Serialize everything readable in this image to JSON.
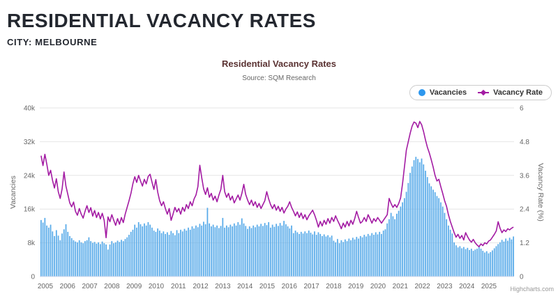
{
  "header": {
    "title": "RESIDENTIAL VACANCY RATES",
    "city": "CITY: MELBOURNE"
  },
  "chart": {
    "title": "Residential Vacancy Rates",
    "subtitle": "Source: SQM Research",
    "credit": "Highcharts.com",
    "legend": {
      "vacancies": "Vacancies",
      "vacancy_rate": "Vacancy Rate"
    },
    "left_axis": {
      "title": "Vacancies",
      "ticks": [
        "0",
        "8k",
        "16k",
        "24k",
        "32k",
        "40k"
      ]
    },
    "right_axis": {
      "title": "Vacancy Rate (%)",
      "ticks": [
        "0",
        "1.2",
        "2.4",
        "3.6",
        "4.8",
        "6"
      ]
    },
    "colors": {
      "bar": "#57aae9",
      "legend_dot": "#2d97ee",
      "line": "#a31ba3",
      "grid": "#e6e6e6",
      "axis_line": "#ccd6eb",
      "axis_text": "#666666"
    }
  },
  "chart_data": {
    "type": "bar+line",
    "title": "Residential Vacancy Rates",
    "subtitle": "Source: SQM Research",
    "x_start": "2005-01",
    "x_interval": "month",
    "x_year_labels": [
      "2005",
      "2006",
      "2007",
      "2008",
      "2009",
      "2010",
      "2011",
      "2012",
      "2013",
      "2014",
      "2015",
      "2016",
      "2017",
      "2018",
      "2019",
      "2020",
      "2021",
      "2022",
      "2023",
      "2024",
      "2025"
    ],
    "ylim_left": [
      0,
      40000
    ],
    "ylim_right": [
      0,
      6
    ],
    "ylabel_left": "Vacancies",
    "ylabel_right": "Vacancy Rate (%)",
    "legend_position": "top-right",
    "grid": true,
    "series": [
      {
        "name": "Vacancies",
        "type": "bar",
        "axis": "left",
        "unit": "thousands",
        "color": "#57aae9",
        "values": [
          13.4,
          12.8,
          13.9,
          12.1,
          11.6,
          12.3,
          10.7,
          9.6,
          11.0,
          9.7,
          8.6,
          10.2,
          11.2,
          12.4,
          10.6,
          9.6,
          9.1,
          8.6,
          8.3,
          8.1,
          8.6,
          8.1,
          7.9,
          8.4,
          8.6,
          9.3,
          8.4,
          8.0,
          8.2,
          7.8,
          8.1,
          7.7,
          8.3,
          7.9,
          7.6,
          6.4,
          7.6,
          8.4,
          7.9,
          8.1,
          8.5,
          8.2,
          8.7,
          8.4,
          8.9,
          9.3,
          9.9,
          10.6,
          11.1,
          12.3,
          11.6,
          12.9,
          12.4,
          11.9,
          12.6,
          12.1,
          12.9,
          12.3,
          11.6,
          10.9,
          10.6,
          11.4,
          10.9,
          10.3,
          10.7,
          10.1,
          10.5,
          9.9,
          10.8,
          10.3,
          9.8,
          11.0,
          10.3,
          11.1,
          10.7,
          11.3,
          10.9,
          11.6,
          11.1,
          11.9,
          11.4,
          12.1,
          11.7,
          12.5,
          12.1,
          13.0,
          12.4,
          16.3,
          12.6,
          11.9,
          12.3,
          11.7,
          12.1,
          11.5,
          12.0,
          13.9,
          11.6,
          12.1,
          11.7,
          12.3,
          11.9,
          12.6,
          12.1,
          12.9,
          12.3,
          13.8,
          12.6,
          12.0,
          11.3,
          11.9,
          11.5,
          12.1,
          11.7,
          12.3,
          11.9,
          12.5,
          12.0,
          12.7,
          12.2,
          12.9,
          11.6,
          12.3,
          11.8,
          12.5,
          12.0,
          12.7,
          12.1,
          13.2,
          12.4,
          11.9,
          11.4,
          12.1,
          10.3,
          10.9,
          10.5,
          10.1,
          10.6,
          10.2,
          10.7,
          10.3,
          10.9,
          10.4,
          10.0,
          10.7,
          9.9,
          10.5,
          10.1,
          9.6,
          10.0,
          9.5,
          9.8,
          9.3,
          9.7,
          8.5,
          8.1,
          8.9,
          7.9,
          8.6,
          8.2,
          8.8,
          8.4,
          9.0,
          8.6,
          9.2,
          8.8,
          9.4,
          9.0,
          9.6,
          9.3,
          9.9,
          9.5,
          10.1,
          9.7,
          10.3,
          9.9,
          10.5,
          10.0,
          10.6,
          10.1,
          10.9,
          11.2,
          12.6,
          13.6,
          15.1,
          14.3,
          13.6,
          14.9,
          15.6,
          16.6,
          17.6,
          18.6,
          20.1,
          22.2,
          24.6,
          26.1,
          27.6,
          28.4,
          27.9,
          27.1,
          28.0,
          26.6,
          25.1,
          23.6,
          22.1,
          21.4,
          20.6,
          20.0,
          19.1,
          18.6,
          17.6,
          16.6,
          15.1,
          13.6,
          12.1,
          11.1,
          10.2,
          8.1,
          7.4,
          6.9,
          7.2,
          6.7,
          7.0,
          6.5,
          6.8,
          6.3,
          6.6,
          6.1,
          6.4,
          6.6,
          7.1,
          6.6,
          6.1,
          5.7,
          6.0,
          5.5,
          5.8,
          6.2,
          6.7,
          7.2,
          7.7,
          8.1,
          8.7,
          8.3,
          9.0,
          8.5,
          9.2,
          8.8,
          9.5
        ]
      },
      {
        "name": "Vacancy Rate",
        "type": "line",
        "axis": "right",
        "unit": "percent",
        "color": "#a31ba3",
        "values": [
          4.3,
          3.95,
          4.35,
          4.0,
          3.6,
          3.78,
          3.42,
          3.15,
          3.48,
          3.02,
          2.78,
          3.12,
          3.72,
          3.22,
          2.92,
          2.62,
          2.48,
          2.65,
          2.32,
          2.18,
          2.42,
          2.22,
          2.08,
          2.32,
          2.52,
          2.28,
          2.45,
          2.15,
          2.35,
          2.1,
          2.28,
          2.05,
          2.25,
          2.0,
          1.38,
          2.12,
          1.95,
          2.2,
          2.0,
          1.82,
          2.06,
          1.86,
          2.1,
          1.92,
          2.22,
          2.46,
          2.7,
          2.96,
          3.3,
          3.55,
          3.35,
          3.6,
          3.4,
          3.22,
          3.46,
          3.3,
          3.56,
          3.64,
          3.36,
          3.1,
          3.45,
          3.0,
          2.7,
          2.52,
          2.66,
          2.42,
          2.22,
          2.42,
          2.0,
          2.22,
          2.46,
          2.3,
          2.42,
          2.22,
          2.46,
          2.32,
          2.56,
          2.42,
          2.66,
          2.52,
          2.76,
          2.9,
          3.2,
          3.96,
          3.52,
          3.12,
          2.92,
          3.16,
          2.82,
          2.96,
          2.72,
          2.86,
          2.66,
          2.9,
          3.1,
          3.6,
          3.02,
          2.82,
          2.96,
          2.72,
          2.86,
          2.62,
          2.76,
          2.9,
          2.72,
          2.96,
          3.28,
          2.92,
          2.72,
          2.56,
          2.72,
          2.52,
          2.66,
          2.46,
          2.6,
          2.42,
          2.56,
          2.7,
          3.02,
          2.76,
          2.56,
          2.42,
          2.56,
          2.36,
          2.5,
          2.32,
          2.46,
          2.26,
          2.4,
          2.5,
          2.66,
          2.46,
          2.32,
          2.16,
          2.3,
          2.1,
          2.26,
          2.06,
          2.2,
          2.02,
          2.16,
          2.26,
          2.36,
          2.2,
          2.0,
          1.76,
          1.96,
          1.8,
          2.0,
          1.86,
          2.06,
          1.9,
          2.1,
          1.96,
          2.16,
          2.0,
          1.86,
          1.7,
          1.9,
          1.76,
          1.96,
          1.8,
          2.0,
          1.86,
          2.06,
          2.32,
          2.1,
          1.9,
          1.96,
          2.1,
          1.96,
          2.2,
          2.06,
          1.9,
          2.06,
          1.96,
          2.1,
          2.0,
          1.9,
          2.0,
          2.1,
          2.2,
          2.78,
          2.6,
          2.46,
          2.56,
          2.46,
          2.6,
          2.8,
          3.3,
          3.9,
          4.5,
          4.8,
          5.1,
          5.35,
          5.5,
          5.46,
          5.3,
          5.52,
          5.4,
          5.16,
          4.86,
          4.6,
          4.4,
          4.16,
          3.9,
          3.6,
          3.4,
          3.46,
          3.2,
          2.96,
          2.7,
          2.5,
          2.2,
          1.96,
          1.76,
          1.56,
          1.4,
          1.5,
          1.36,
          1.46,
          1.3,
          1.56,
          1.42,
          1.3,
          1.22,
          1.32,
          1.2,
          1.12,
          1.06,
          1.16,
          1.1,
          1.2,
          1.16,
          1.26,
          1.3,
          1.4,
          1.5,
          1.62,
          1.95,
          1.72,
          1.56,
          1.66,
          1.6,
          1.7,
          1.66,
          1.72,
          1.76
        ]
      }
    ]
  }
}
